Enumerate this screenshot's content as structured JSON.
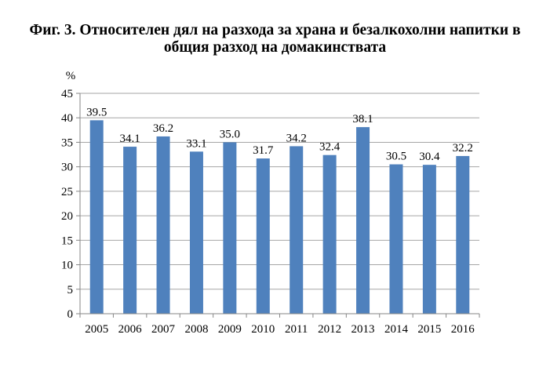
{
  "title_lines": [
    "Фиг. 3. Относителен дял на разхода за храна и безалкохолни напитки в",
    "общия разход на домакинствата"
  ],
  "chart_data": {
    "type": "bar",
    "title": "Фиг. 3. Относителен дял на разхода за храна и безалкохолни напитки в общия разход на домакинствата",
    "ylabel": "%",
    "xlabel": "",
    "categories": [
      "2005",
      "2006",
      "2007",
      "2008",
      "2009",
      "2010",
      "2011",
      "2012",
      "2013",
      "2014",
      "2015",
      "2016"
    ],
    "values": [
      39.5,
      34.1,
      36.2,
      33.1,
      35.0,
      31.7,
      34.2,
      32.4,
      38.1,
      30.5,
      30.4,
      32.2
    ],
    "value_labels": [
      "39.5",
      "34.1",
      "36.2",
      "33.1",
      "35.0",
      "31.7",
      "34.2",
      "32.4",
      "38.1",
      "30.5",
      "30.4",
      "32.2"
    ],
    "ylim": [
      0,
      45
    ],
    "yticks": [
      0,
      5,
      10,
      15,
      20,
      25,
      30,
      35,
      40,
      45
    ],
    "grid": true,
    "legend": "none",
    "bar_color": "#4f81bd"
  }
}
